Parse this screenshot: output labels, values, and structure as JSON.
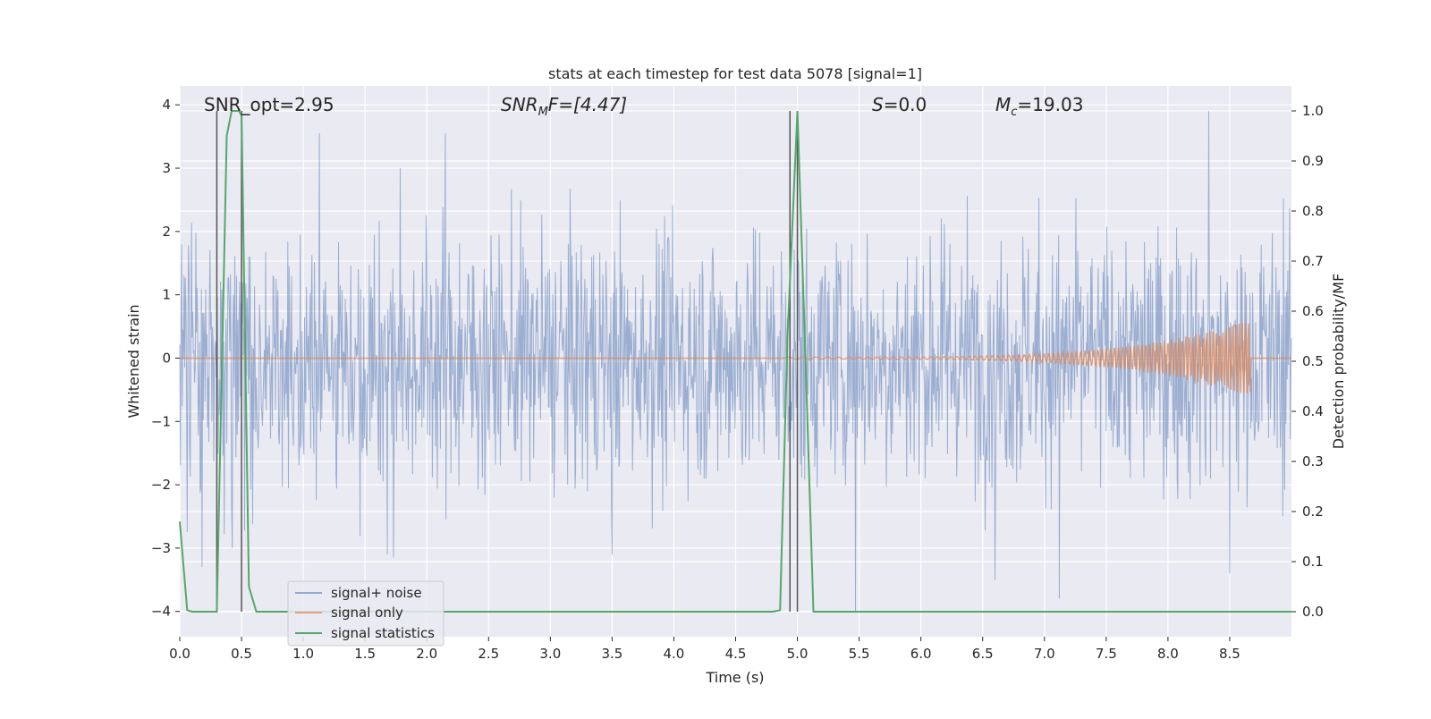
{
  "chart_data": {
    "type": "line",
    "title": "stats at each timestep for test data 5078 [signal=1]",
    "xlabel": "Time (s)",
    "ylabel_left": "Whitened strain",
    "ylabel_right": "Detection probability/MF",
    "xlim": [
      0.0,
      9.0
    ],
    "ylim_left": [
      -4.4,
      4.3
    ],
    "ylim_right": [
      -0.05,
      1.05
    ],
    "x_ticks": [
      "0.0",
      "0.5",
      "1.0",
      "1.5",
      "2.0",
      "2.5",
      "3.0",
      "3.5",
      "4.0",
      "4.5",
      "5.0",
      "5.5",
      "6.0",
      "6.5",
      "7.0",
      "7.5",
      "8.0",
      "8.5"
    ],
    "y_ticks_left": [
      "4",
      "3",
      "2",
      "1",
      "0",
      "−1",
      "−2",
      "−3",
      "−4"
    ],
    "y_ticks_right": [
      "1.0",
      "0.9",
      "0.8",
      "0.7",
      "0.6",
      "0.5",
      "0.4",
      "0.3",
      "0.2",
      "0.1",
      "0.0"
    ],
    "grid": true,
    "legend_position": "lower-left",
    "annotations": {
      "snr_opt": "SNR_opt=2.95",
      "snr_mf_main": "SNR",
      "snr_mf_sub": "M",
      "snr_mf_tail": "F=[4.47]",
      "s_main": "S",
      "s_tail": "=0.0",
      "mc_main": "M",
      "mc_sub": "c",
      "mc_tail": "=19.03"
    },
    "series": [
      {
        "name": "signal+ noise",
        "color": "#4c72b0",
        "noise_scale": 1.0,
        "extremes": [
          [
            0.18,
            -3.3
          ],
          [
            1.68,
            -3.1
          ],
          [
            1.73,
            -3.15
          ],
          [
            3.5,
            -3.1
          ],
          [
            5.47,
            -4.0
          ],
          [
            6.6,
            -3.5
          ],
          [
            7.12,
            -3.8
          ],
          [
            8.5,
            -3.4
          ],
          [
            8.33,
            3.9
          ],
          [
            1.13,
            3.55
          ],
          [
            2.15,
            3.55
          ]
        ]
      },
      {
        "name": "signal only",
        "color": "#dd8452",
        "chirp_start": 4.9,
        "chirp_end": 8.67,
        "peak_amplitude": 0.6
      },
      {
        "name": "signal statistics",
        "color": "#55a868",
        "x": [
          0.0,
          0.06,
          0.1,
          0.3,
          0.38,
          0.42,
          0.48,
          0.5,
          0.56,
          0.62,
          1.0,
          2.0,
          3.0,
          4.0,
          4.8,
          4.86,
          4.92,
          5.0,
          5.06,
          5.13,
          6.0,
          7.0,
          8.0,
          9.0
        ],
        "y": [
          0.18,
          0.003,
          0.0,
          0.0,
          0.95,
          1.0,
          1.0,
          0.99,
          0.05,
          0.0,
          0.0,
          0.0,
          0.0,
          0.0,
          0.0,
          0.003,
          0.55,
          1.0,
          0.55,
          0.0,
          0.0,
          0.0,
          0.0,
          0.0
        ]
      }
    ],
    "vertical_markers": [
      0.3,
      0.5,
      4.94,
      5.0
    ]
  }
}
